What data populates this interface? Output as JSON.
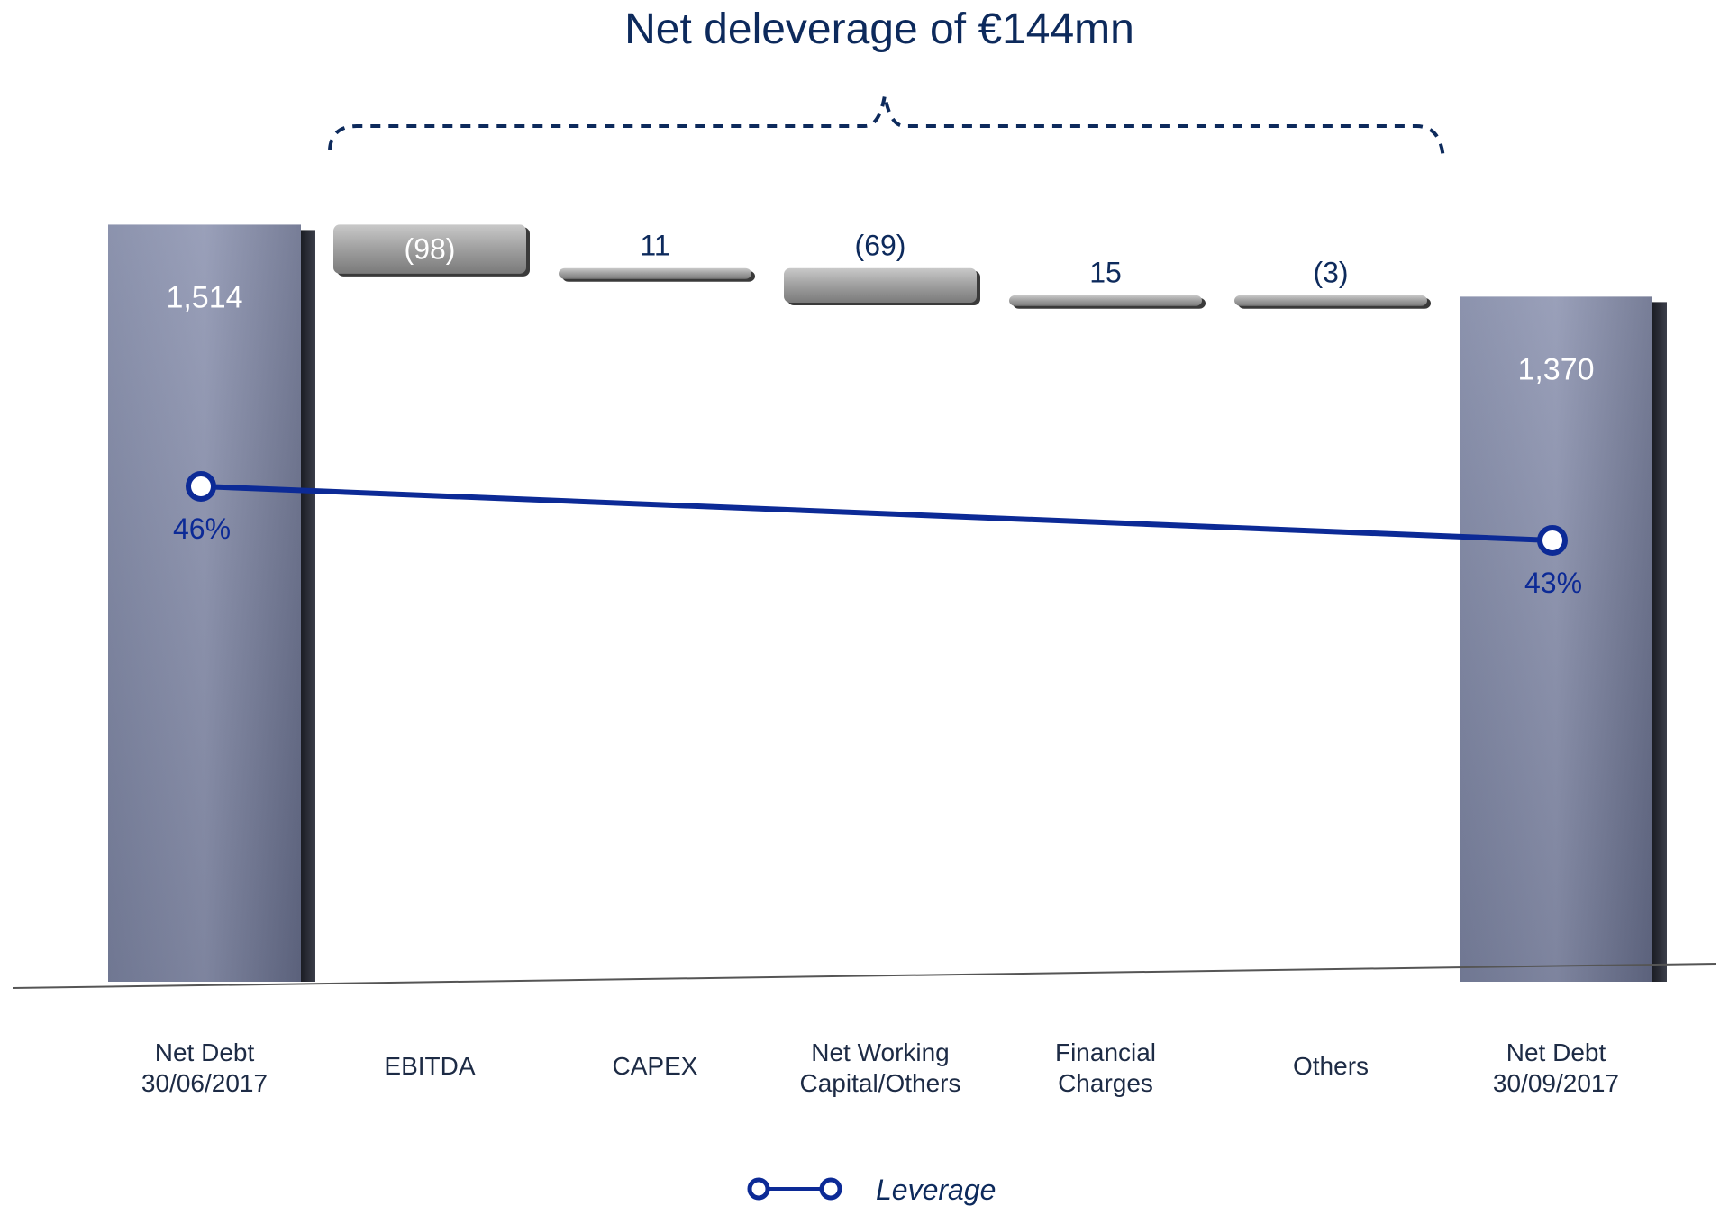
{
  "chart_data": {
    "type": "bar",
    "subtype": "waterfall",
    "title": "Net deleverage of €144mn",
    "categories": [
      [
        "Net Debt",
        "30/06/2017"
      ],
      [
        "EBITDA"
      ],
      [
        "CAPEX"
      ],
      [
        "Net Working",
        "Capital/Others"
      ],
      [
        "Financial",
        "Charges"
      ],
      [
        "Others"
      ],
      [
        "Net Debt",
        "30/09/2017"
      ]
    ],
    "values": [
      1514,
      -98,
      11,
      -69,
      15,
      -3,
      1370
    ],
    "value_labels": [
      "1,514",
      "(98)",
      "11",
      "(69)",
      "15",
      "(3)",
      "1,370"
    ],
    "bar_kinds": [
      "total",
      "delta",
      "delta",
      "delta",
      "delta",
      "delta",
      "total"
    ],
    "ylim": [
      0,
      1540
    ],
    "grid": false,
    "series": [
      {
        "name": "Leverage",
        "type": "line",
        "points": [
          {
            "category_index": 0,
            "value": 46,
            "label": "46%"
          },
          {
            "category_index": 6,
            "value": 43,
            "label": "43%"
          }
        ]
      }
    ],
    "legend": {
      "position": "bottom-center",
      "entries": [
        "Leverage"
      ]
    },
    "colors": {
      "total_bar": "#6e7592",
      "delta_bar": "#9a9a9a",
      "leverage_line": "#0c2a96",
      "title": "#0d2a5c"
    }
  }
}
